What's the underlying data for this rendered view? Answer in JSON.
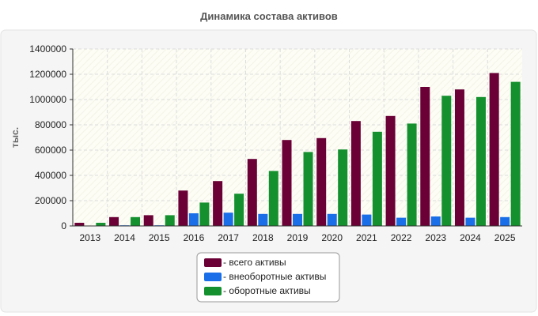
{
  "chart_data": {
    "type": "bar",
    "title": "Динамика состава активов",
    "xlabel": "",
    "ylabel": "тыс.",
    "ylim": [
      0,
      1400000
    ],
    "yticks": [
      0,
      200000,
      400000,
      600000,
      800000,
      1000000,
      1200000,
      1400000
    ],
    "categories": [
      "2013",
      "2014",
      "2015",
      "2016",
      "2017",
      "2018",
      "2019",
      "2020",
      "2021",
      "2022",
      "2023",
      "2024",
      "2025"
    ],
    "grid": true,
    "legend_position": "bottom-center",
    "series": [
      {
        "name": "- всего активы",
        "color": "#6b0036",
        "values": [
          25000,
          70000,
          85000,
          280000,
          355000,
          530000,
          680000,
          695000,
          830000,
          870000,
          1100000,
          1080000,
          1210000
        ]
      },
      {
        "name": "- внеоборотные активы",
        "color": "#1a6fe8",
        "values": [
          3000,
          5000,
          5000,
          100000,
          105000,
          95000,
          95000,
          95000,
          90000,
          65000,
          75000,
          65000,
          70000
        ]
      },
      {
        "name": "- оборотные активы",
        "color": "#14912e",
        "values": [
          25000,
          70000,
          85000,
          185000,
          255000,
          435000,
          585000,
          605000,
          745000,
          810000,
          1030000,
          1020000,
          1140000
        ]
      }
    ]
  }
}
